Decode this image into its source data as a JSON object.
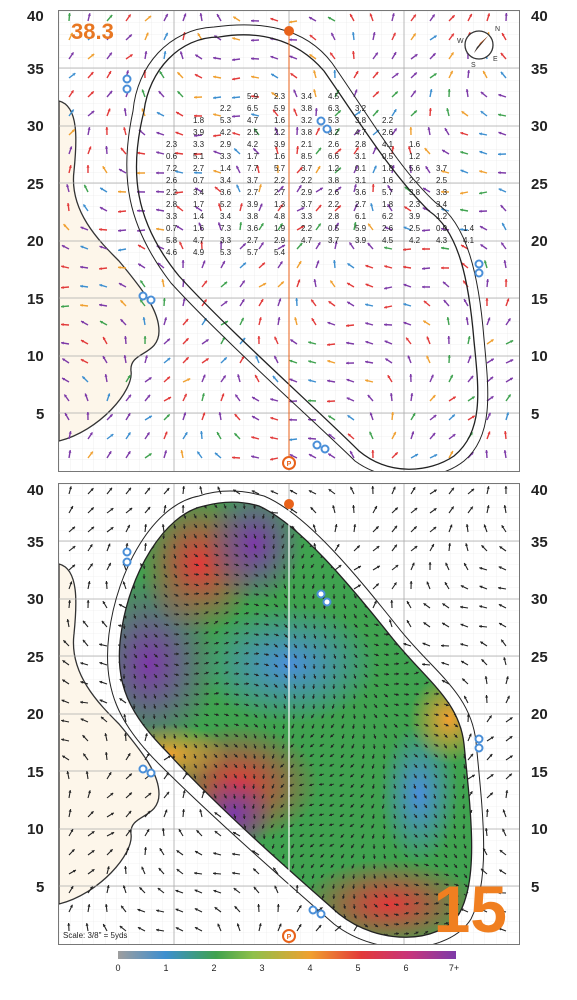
{
  "green_number": "38.3",
  "hole_number": "15",
  "scale_text": "Scale: 3/8\" = 5yds",
  "y_axis_ticks": [
    "40",
    "35",
    "30",
    "25",
    "20",
    "15",
    "10",
    "5"
  ],
  "legend_ticks": [
    "0",
    "1",
    "2",
    "3",
    "4",
    "5",
    "6",
    "7+"
  ],
  "colors": {
    "accent": "#f07f20",
    "pin": "#e8621a",
    "sprinkler": "#4a8fd8",
    "sand": "#fdf6ea"
  },
  "icons": [
    "compass-icon",
    "pin-flag-icon",
    "sprinkler-icon",
    "pin-circle-icon"
  ],
  "slope_labels": [
    [
      "5.9",
      "2.3",
      "3.4",
      "4.5",
      "2.2",
      "6.5",
      "5.9",
      "3.8",
      "6.3",
      "3.2",
      "1.8",
      "5.3",
      "4.7",
      "1.6",
      "3.2",
      "5.3",
      "3.8",
      "2.2",
      "3.9",
      "4.2",
      "2.5",
      "2.2",
      "3.8",
      "3.2",
      "4.7",
      "2.6",
      "2.3",
      "3.3",
      "2.9",
      "4.2",
      "3.9",
      "2.1",
      "2.6",
      "2.8",
      "4.1",
      "1.6",
      "0.6",
      "5.1",
      "3.3",
      "1.7",
      "1.6",
      "8.5",
      "6.6",
      "3.1",
      "0.5",
      "1.2",
      "7.2",
      "2.7",
      "1.4",
      "7.7",
      "5.7",
      "3.7",
      "1.2",
      "0.1",
      "1.8",
      "5.6",
      "3.7",
      "2.6",
      "0.7",
      "3.4",
      "3.7",
      "2.2",
      "2.2",
      "3.8",
      "3.1",
      "1.6",
      "2.2",
      "2.5",
      "2.2",
      "3.4",
      "3.6",
      "2.7",
      "2.7",
      "2.9",
      "2.6",
      "3.6",
      "5.7",
      "3.8",
      "3.3",
      "2.8",
      "1.7",
      "5.2",
      "3.9",
      "1.3",
      "3.7",
      "2.2",
      "2.7",
      "1.8",
      "2.3",
      "3.4",
      "3.3",
      "1.4",
      "3.4",
      "3.8",
      "4.8",
      "3.3",
      "2.8",
      "6.1",
      "6.2",
      "3.9",
      "1.2",
      "0.7",
      "1.6",
      "7.3",
      "3.6",
      "1.9",
      "2.2",
      "0.5",
      "5.9",
      "2.6",
      "2.5",
      "0.9",
      "1.4",
      "5.8",
      "4.7",
      "3.3",
      "2.7",
      "2.9",
      "4.7",
      "3.7",
      "3.9",
      "4.5",
      "4.2",
      "4.3",
      "4.1",
      "4.6",
      "4.9",
      "5.3",
      "5.7",
      "5.4"
    ]
  ]
}
